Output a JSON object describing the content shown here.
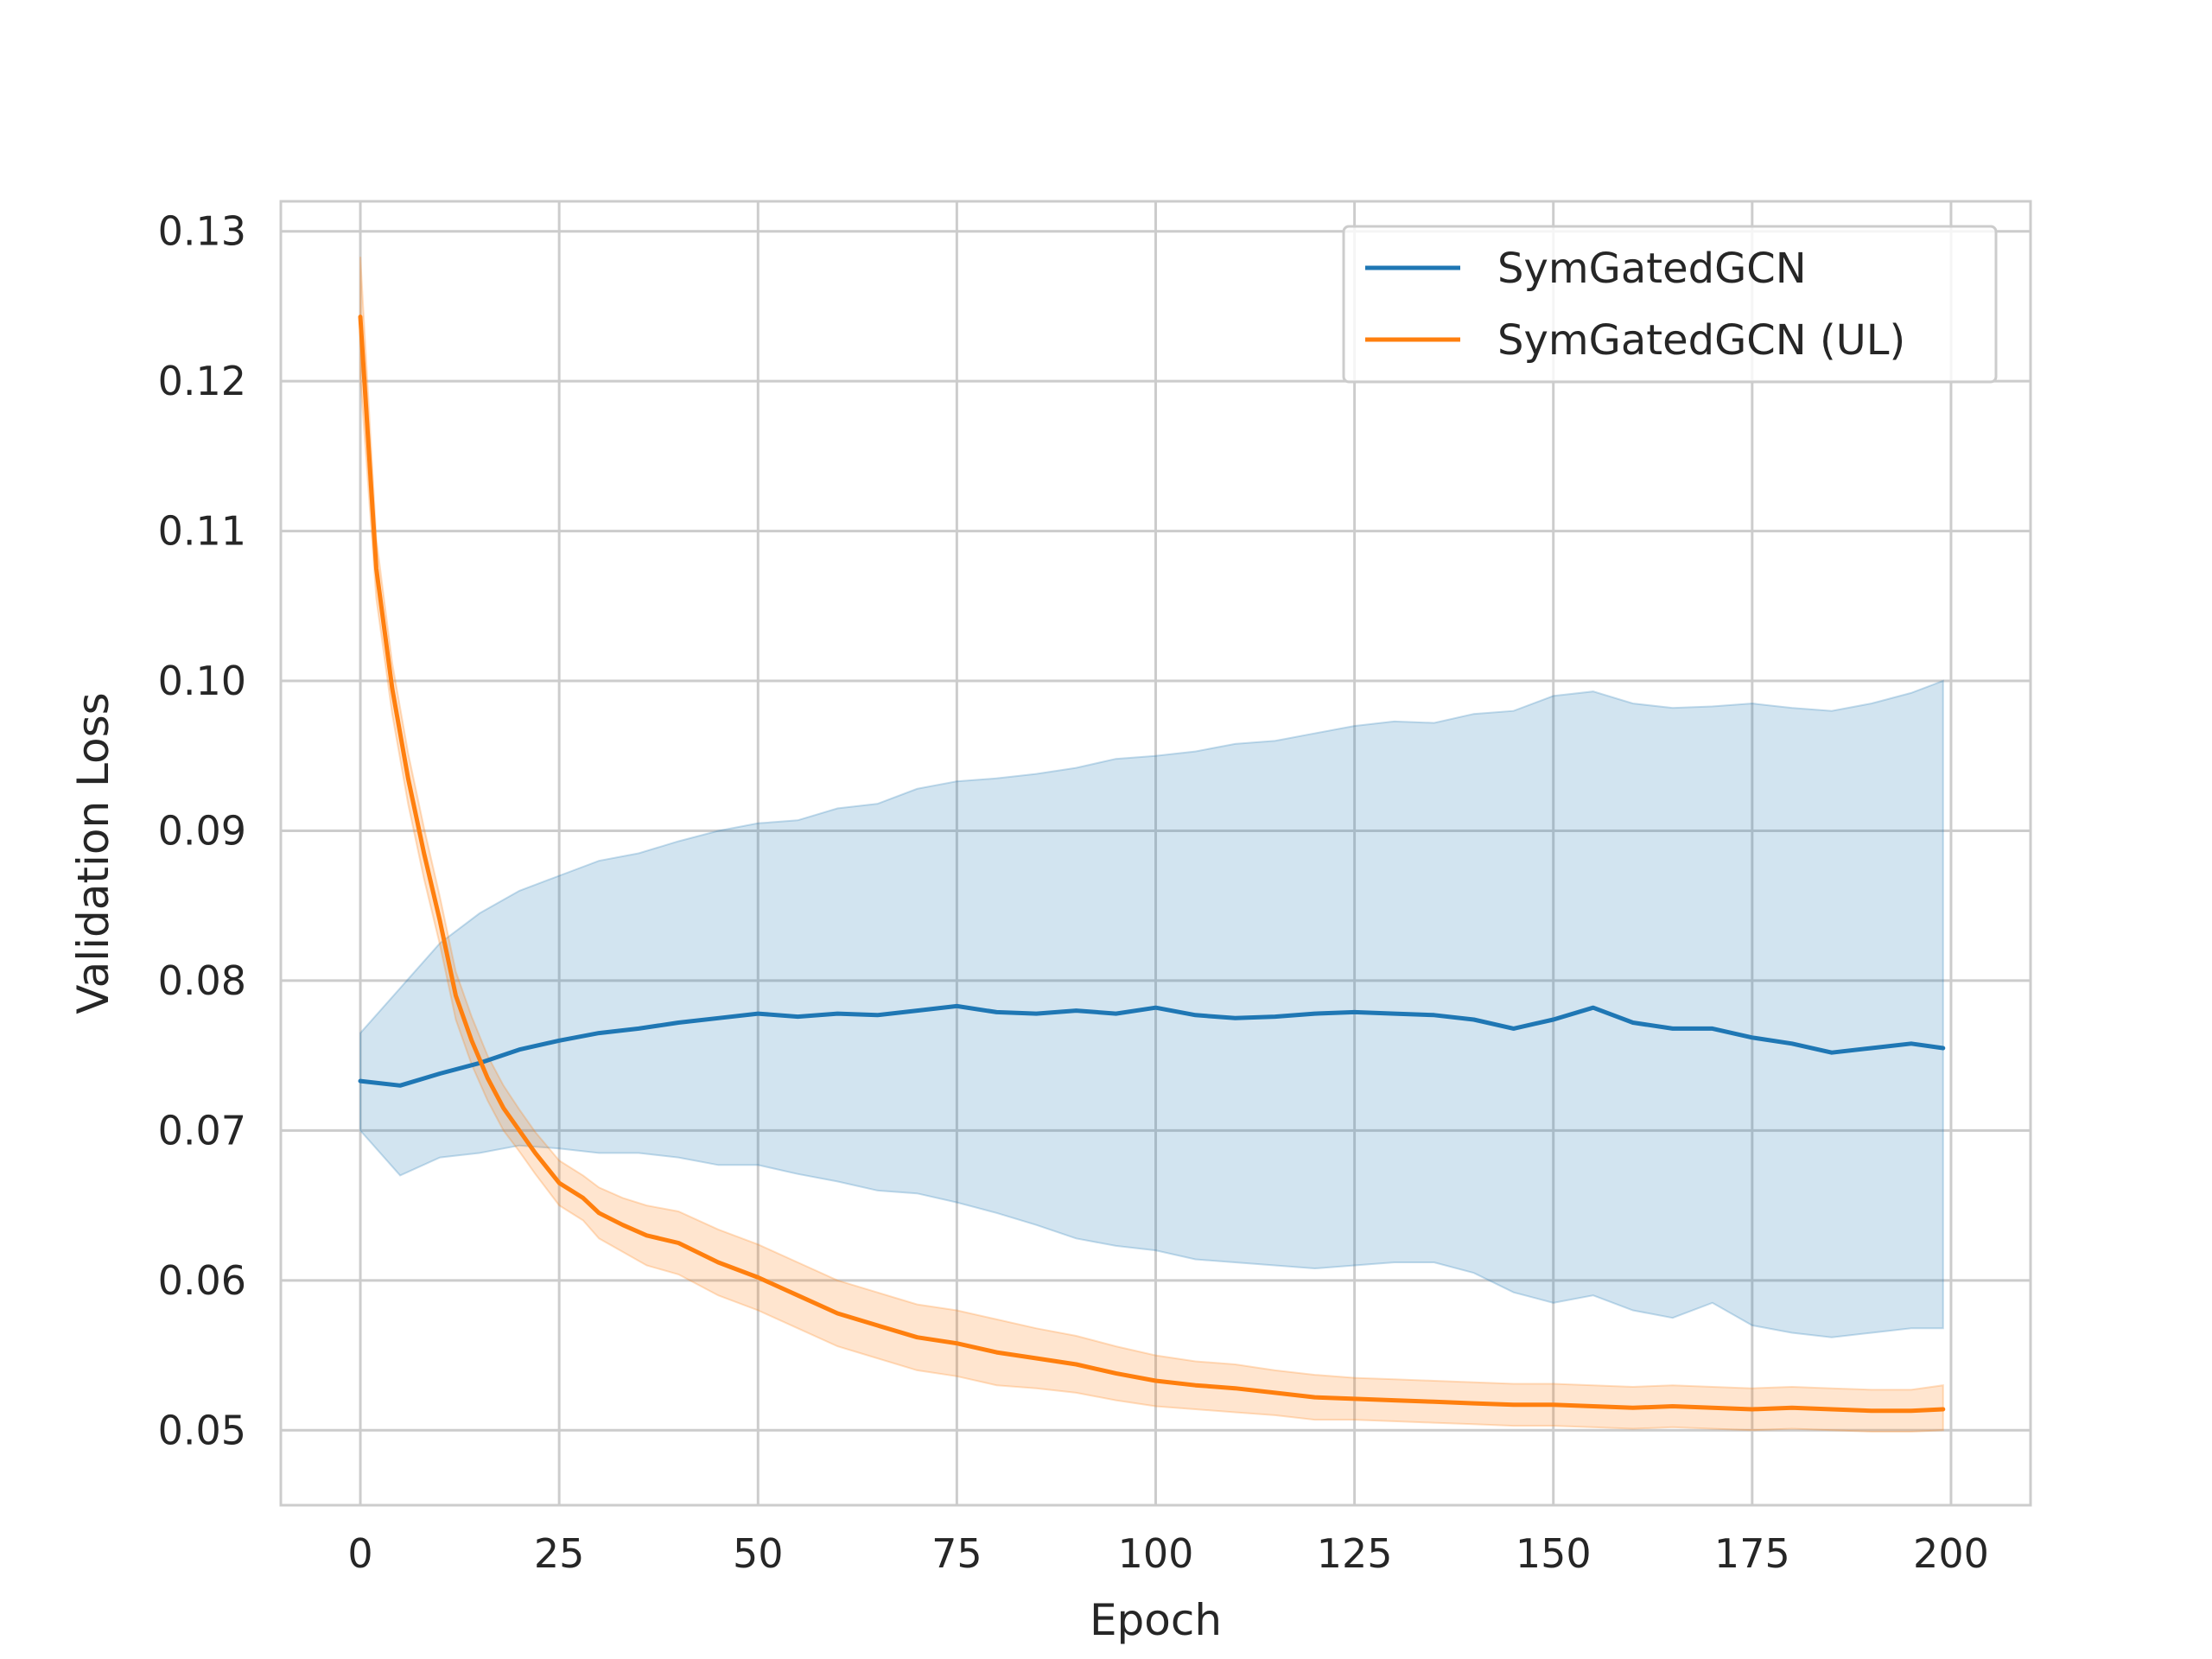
{
  "chart_data": {
    "type": "line",
    "title": "",
    "xlabel": "Epoch",
    "ylabel": "Validation Loss",
    "xlim": [
      -10,
      210
    ],
    "ylim": [
      0.045,
      0.132
    ],
    "xticks": [
      0,
      25,
      50,
      75,
      100,
      125,
      150,
      175,
      200
    ],
    "yticks": [
      0.05,
      0.06,
      0.07,
      0.08,
      0.09,
      0.1,
      0.11,
      0.12,
      0.13
    ],
    "xtick_labels": [
      "0",
      "25",
      "50",
      "75",
      "100",
      "125",
      "150",
      "175",
      "200"
    ],
    "ytick_labels": [
      "0.05",
      "0.06",
      "0.07",
      "0.08",
      "0.09",
      "0.10",
      "0.11",
      "0.12",
      "0.13"
    ],
    "grid": true,
    "legend_position": "top-right",
    "series": [
      {
        "name": "SymGatedGCN",
        "color": "#1f77b4",
        "band": "mean ± std shaded region",
        "x": [
          0,
          5,
          10,
          15,
          20,
          25,
          30,
          35,
          40,
          45,
          50,
          55,
          60,
          65,
          70,
          75,
          80,
          85,
          90,
          95,
          100,
          105,
          110,
          115,
          120,
          125,
          130,
          135,
          140,
          145,
          150,
          155,
          160,
          165,
          170,
          175,
          180,
          185,
          190,
          195,
          199
        ],
        "mean": [
          0.0733,
          0.073,
          0.0738,
          0.0745,
          0.0754,
          0.076,
          0.0765,
          0.0768,
          0.0772,
          0.0775,
          0.0778,
          0.0776,
          0.0778,
          0.0777,
          0.078,
          0.0783,
          0.0779,
          0.0778,
          0.078,
          0.0778,
          0.0782,
          0.0777,
          0.0775,
          0.0776,
          0.0778,
          0.0779,
          0.0778,
          0.0777,
          0.0774,
          0.0768,
          0.0774,
          0.0782,
          0.0772,
          0.0768,
          0.0768,
          0.0762,
          0.0758,
          0.0752,
          0.0755,
          0.0758,
          0.0755
        ],
        "upper": [
          0.0765,
          0.0795,
          0.0825,
          0.0845,
          0.086,
          0.087,
          0.088,
          0.0885,
          0.0893,
          0.09,
          0.0905,
          0.0907,
          0.0915,
          0.0918,
          0.0928,
          0.0933,
          0.0935,
          0.0938,
          0.0942,
          0.0948,
          0.095,
          0.0953,
          0.0958,
          0.096,
          0.0965,
          0.097,
          0.0973,
          0.0972,
          0.0978,
          0.098,
          0.099,
          0.0993,
          0.0985,
          0.0982,
          0.0983,
          0.0985,
          0.0982,
          0.098,
          0.0985,
          0.0992,
          0.1
        ],
        "lower": [
          0.07,
          0.067,
          0.0682,
          0.0685,
          0.069,
          0.0688,
          0.0685,
          0.0685,
          0.0682,
          0.0677,
          0.0677,
          0.0671,
          0.0666,
          0.066,
          0.0658,
          0.0652,
          0.0645,
          0.0637,
          0.0628,
          0.0623,
          0.062,
          0.0614,
          0.0612,
          0.061,
          0.0608,
          0.061,
          0.0612,
          0.0612,
          0.0605,
          0.0592,
          0.0585,
          0.059,
          0.058,
          0.0575,
          0.0585,
          0.057,
          0.0565,
          0.0562,
          0.0565,
          0.0568,
          0.0568
        ]
      },
      {
        "name": "SymGatedGCN (UL)",
        "color": "#ff7f0e",
        "band": "mean ± std shaded region",
        "x": [
          0,
          2,
          4,
          6,
          8,
          10,
          12,
          14,
          16,
          18,
          20,
          22,
          25,
          28,
          30,
          33,
          36,
          40,
          45,
          50,
          55,
          60,
          65,
          70,
          75,
          80,
          85,
          90,
          95,
          100,
          105,
          110,
          115,
          120,
          125,
          130,
          135,
          140,
          145,
          150,
          155,
          160,
          165,
          170,
          175,
          180,
          185,
          190,
          195,
          199
        ],
        "mean": [
          0.1243,
          0.1075,
          0.0995,
          0.0935,
          0.0885,
          0.084,
          0.079,
          0.076,
          0.0735,
          0.0715,
          0.07,
          0.0685,
          0.0665,
          0.0655,
          0.0645,
          0.0637,
          0.063,
          0.0625,
          0.0612,
          0.0602,
          0.059,
          0.0578,
          0.057,
          0.0562,
          0.0558,
          0.0552,
          0.0548,
          0.0544,
          0.0538,
          0.0533,
          0.053,
          0.0528,
          0.0525,
          0.0522,
          0.0521,
          0.052,
          0.0519,
          0.0518,
          0.0517,
          0.0517,
          0.0516,
          0.0515,
          0.0516,
          0.0515,
          0.0514,
          0.0515,
          0.0514,
          0.0513,
          0.0513,
          0.0514
        ],
        "upper": [
          0.1283,
          0.1095,
          0.1012,
          0.0952,
          0.0902,
          0.0856,
          0.0806,
          0.0776,
          0.075,
          0.073,
          0.0714,
          0.0699,
          0.068,
          0.067,
          0.0662,
          0.0655,
          0.065,
          0.0646,
          0.0634,
          0.0624,
          0.0612,
          0.06,
          0.0592,
          0.0584,
          0.058,
          0.0574,
          0.0568,
          0.0563,
          0.0556,
          0.055,
          0.0546,
          0.0544,
          0.054,
          0.0537,
          0.0535,
          0.0534,
          0.0533,
          0.0532,
          0.0531,
          0.0531,
          0.053,
          0.0529,
          0.053,
          0.0529,
          0.0528,
          0.0529,
          0.0528,
          0.0527,
          0.0527,
          0.053
        ],
        "lower": [
          0.1203,
          0.1055,
          0.0978,
          0.0918,
          0.0868,
          0.0824,
          0.0774,
          0.0744,
          0.072,
          0.07,
          0.0686,
          0.0671,
          0.065,
          0.064,
          0.0628,
          0.0619,
          0.061,
          0.0604,
          0.059,
          0.058,
          0.0568,
          0.0556,
          0.0548,
          0.054,
          0.0536,
          0.053,
          0.0528,
          0.0525,
          0.052,
          0.0516,
          0.0514,
          0.0512,
          0.051,
          0.0507,
          0.0507,
          0.0506,
          0.0505,
          0.0504,
          0.0503,
          0.0503,
          0.0502,
          0.0501,
          0.0502,
          0.0501,
          0.05,
          0.0501,
          0.05,
          0.0499,
          0.0499,
          0.05
        ]
      }
    ]
  }
}
